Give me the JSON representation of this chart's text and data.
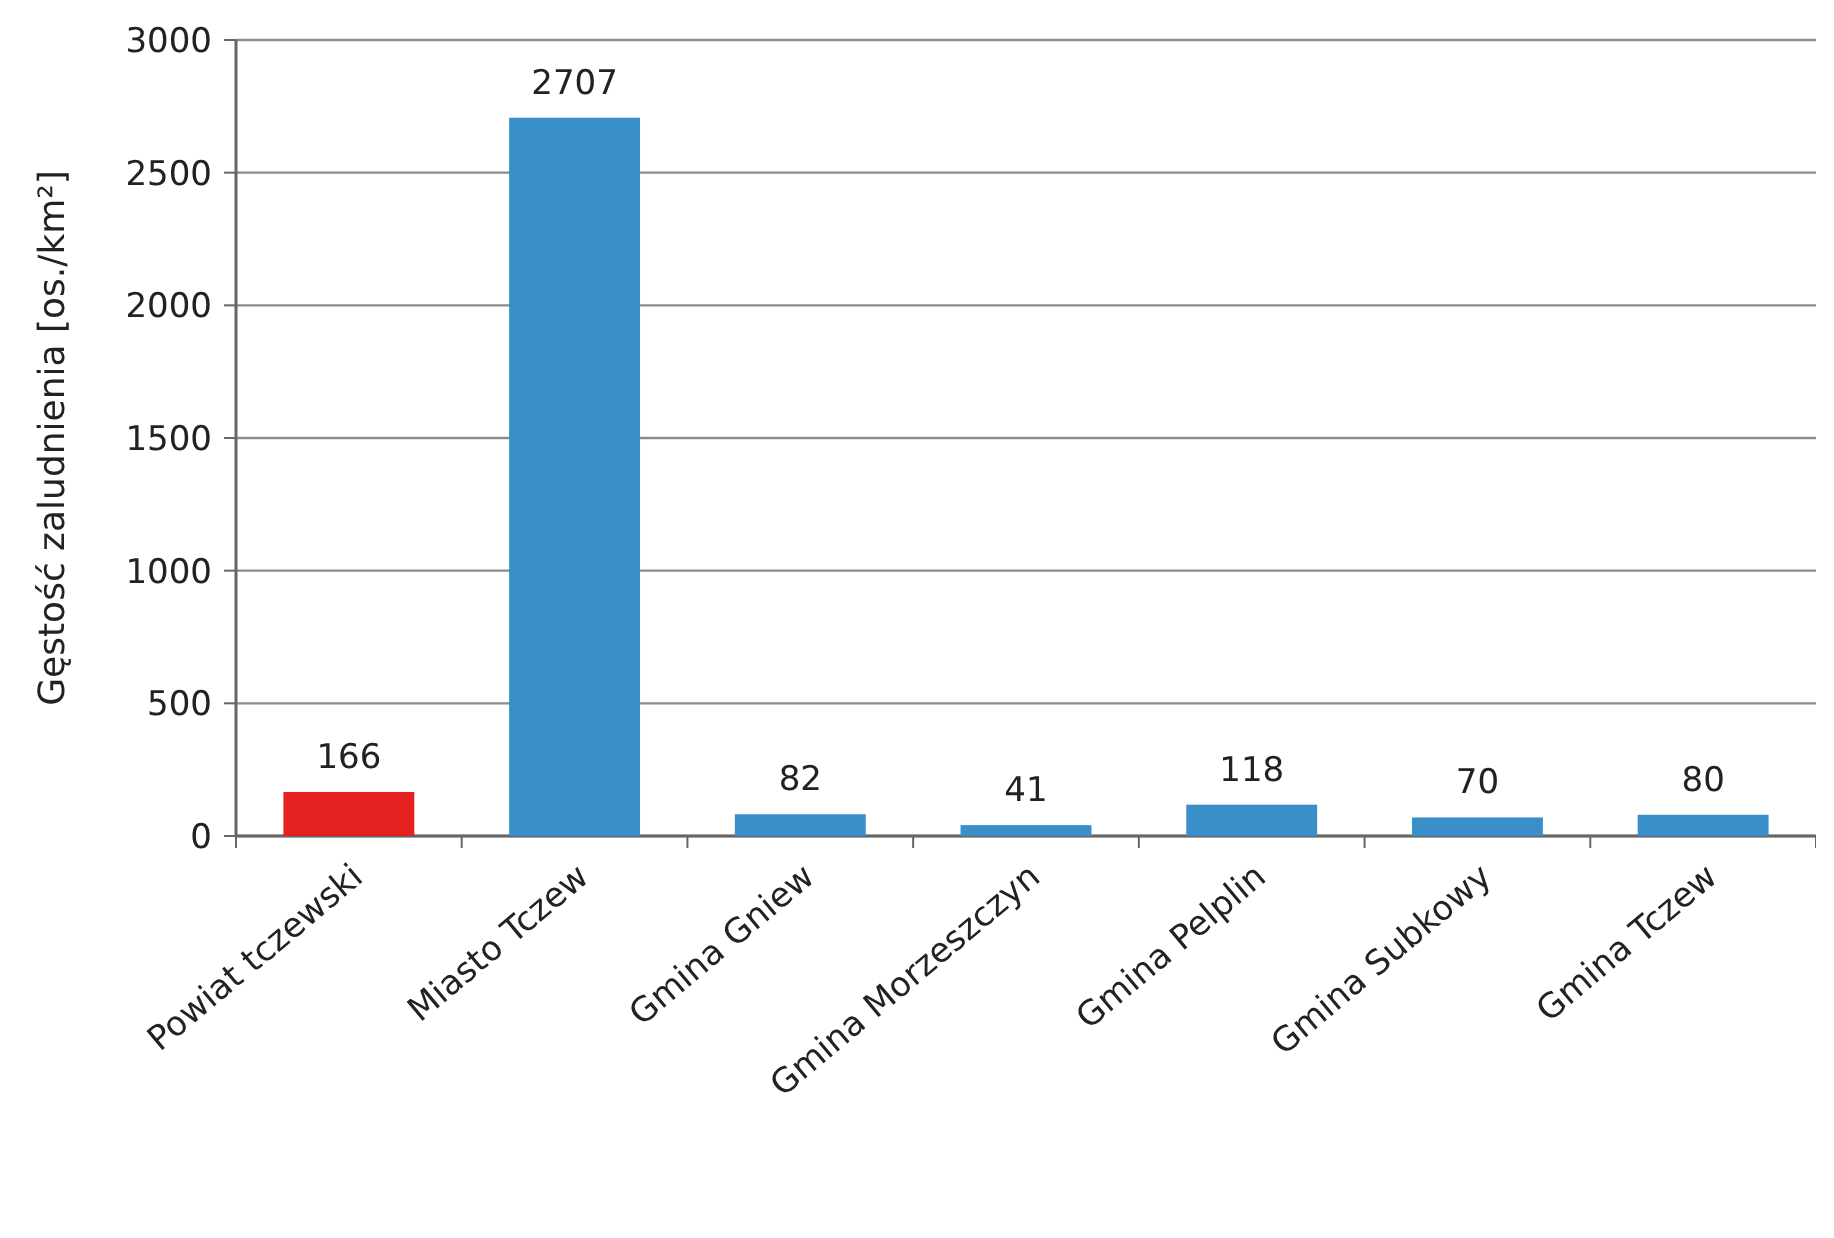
{
  "chart_data": {
    "type": "bar",
    "ylabel": "Gęstość zaludnienia [os./km²]",
    "categories": [
      "Powiat tczewski",
      "Miasto Tczew",
      "Gmina Gniew",
      "Gmina Morzeszczyn",
      "Gmina Pelplin",
      "Gmina Subkowy",
      "Gmina Tczew"
    ],
    "values": [
      166,
      2707,
      82,
      41,
      118,
      70,
      80
    ],
    "colors": [
      "#e3221f",
      "#3b8fc9",
      "#3b8fc9",
      "#3b8fc9",
      "#3b8fc9",
      "#3b8fc9",
      "#3b8fc9"
    ],
    "ylim": [
      0,
      3000
    ],
    "yticks": [
      0,
      500,
      1000,
      1500,
      2000,
      2500,
      3000
    ],
    "grid": "y",
    "data_labels": true
  }
}
